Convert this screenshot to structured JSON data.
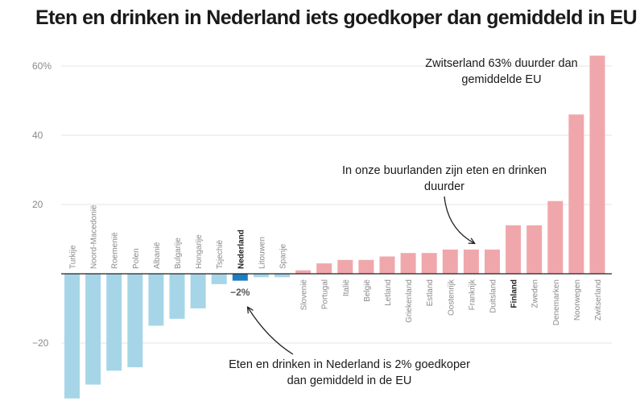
{
  "title": "Eten en drinken in Nederland iets goedkoper dan gemiddeld in EU",
  "colors": {
    "negative": "#a7d5e8",
    "positive": "#f0a7ab",
    "highlight": "#1c7fc2",
    "grid": "#e3e3e3",
    "axis": "#222222"
  },
  "annotations": {
    "switzerland": [
      "Zwitserland 63% duurder dan",
      "gemiddelde EU"
    ],
    "neighbours": [
      "In onze buurlanden zijn eten en drinken",
      "duurder"
    ],
    "netherlands": [
      "Eten en drinken in Nederland is 2% goedkoper",
      "dan gemiddeld in de EU"
    ],
    "nl_value_label": "−2%"
  },
  "chart_data": {
    "type": "bar",
    "title": "Eten en drinken in Nederland iets goedkoper dan gemiddeld in EU",
    "xlabel": "",
    "ylabel": "",
    "ylim": [
      -36,
      64
    ],
    "yticks": [
      -20,
      20,
      40,
      60
    ],
    "ytick_labels": [
      "−20",
      "20",
      "40",
      "60%"
    ],
    "grid": true,
    "highlight": [
      "Nederland",
      "Finland"
    ],
    "categories": [
      "Turkije",
      "Noord-Macedonië",
      "Roemenië",
      "Polen",
      "Albanië",
      "Bulgarije",
      "Hongarije",
      "Tsjechië",
      "Nederland",
      "Litouwen",
      "Spanje",
      "Slovenië",
      "Portugal",
      "Italië",
      "België",
      "Letland",
      "Griekenland",
      "Estland",
      "Oostenrijk",
      "Frankrijk",
      "Duitsland",
      "Finland",
      "Zweden",
      "Denemarken",
      "Noorwegen",
      "Zwitserland"
    ],
    "values": [
      -36,
      -32,
      -28,
      -27,
      -15,
      -13,
      -10,
      -3,
      -2,
      -1,
      -1,
      1,
      3,
      4,
      4,
      5,
      6,
      6,
      7,
      7,
      7,
      14,
      14,
      21,
      46,
      63
    ]
  }
}
